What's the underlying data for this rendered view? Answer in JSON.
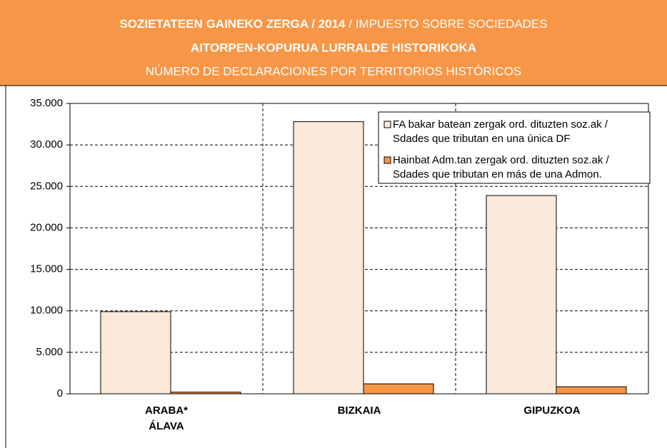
{
  "chart_data": {
    "type": "bar",
    "title": "SOZIETATEEN GAINEKO ZERGA / 2014",
    "title_extra": "/ IMPUESTO SOBRE SOCIEDADES",
    "subtitle": "AITORPEN-KOPURUA LURRALDE HISTORIKOKA",
    "subtitle_extra": "NÚMERO DE DECLARACIONES POR TERRITORIOS HISTÓRICOS",
    "categories": [
      "ARABA*\nÁLAVA",
      "BIZKAIA",
      "GIPUZKOA"
    ],
    "series": [
      {
        "name": "FA bakar batean zergak ord. dituzten soz.ak /\nSdades que tributan en una única DF",
        "color": "#fde9d9",
        "values": [
          9900,
          32800,
          23900
        ]
      },
      {
        "name": "Hainbat Adm.tan zergak ord. dituzten soz.ak /\nSdades que tributan en más de una Admon.",
        "color": "#f79646",
        "values": [
          200,
          1200,
          850
        ]
      }
    ],
    "ylim": [
      0,
      35000
    ],
    "yticks": [
      0,
      {
        "value": 5000,
        "label": "5.000"
      },
      {
        "value": 10000,
        "label": "10.000"
      },
      {
        "value": 15000,
        "label": "15.000"
      },
      {
        "value": 20000,
        "label": "20.000"
      },
      {
        "value": 25000,
        "label": "25.000"
      },
      {
        "value": 30000,
        "label": "30.000"
      },
      {
        "value": 35000,
        "label": "35.000"
      }
    ],
    "grid": true,
    "legend": "upper right"
  }
}
